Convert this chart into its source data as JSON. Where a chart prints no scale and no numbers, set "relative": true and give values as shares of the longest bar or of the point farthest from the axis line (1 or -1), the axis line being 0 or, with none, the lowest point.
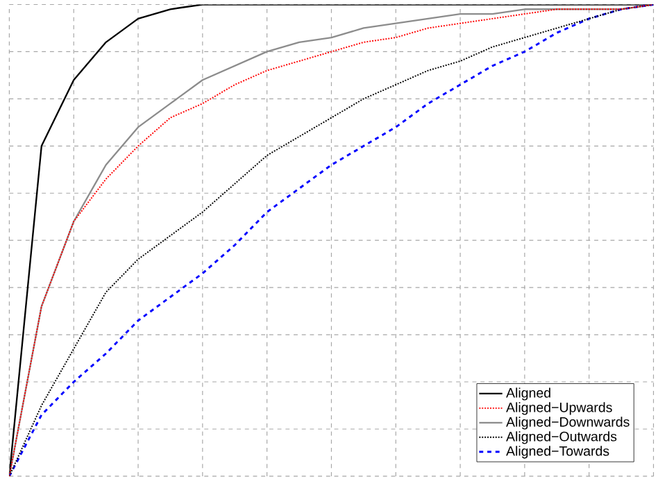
{
  "chart_data": {
    "type": "line",
    "relative": true,
    "grid": true,
    "tick_labels": false,
    "legend": "bottom right",
    "marker": "none",
    "categories": [
      null,
      null,
      null,
      null,
      null,
      null,
      null,
      null,
      null,
      null,
      null,
      null,
      null,
      null,
      null,
      null,
      null,
      null,
      null,
      null,
      null
    ],
    "series": [
      {
        "name": "Aligned",
        "color": "#000000",
        "line_style": "solid",
        "values": [
          0,
          0.7,
          0.84,
          0.92,
          0.97,
          0.99,
          1,
          1,
          1,
          1,
          1,
          1,
          1,
          1,
          1,
          1,
          1,
          1,
          1,
          1,
          1
        ]
      },
      {
        "name": "Aligned−Upwards",
        "color": "#ff0000",
        "line_style": "dotted",
        "values": [
          0,
          0.36,
          0.54,
          0.63,
          0.7,
          0.76,
          0.79,
          0.83,
          0.86,
          0.88,
          0.9,
          0.92,
          0.93,
          0.95,
          0.96,
          0.97,
          0.98,
          0.99,
          0.99,
          0.99,
          1
        ]
      },
      {
        "name": "Aligned−Downwards",
        "color": "#8c8c8c",
        "line_style": "solid",
        "values": [
          0,
          0.36,
          0.54,
          0.66,
          0.74,
          0.79,
          0.84,
          0.87,
          0.9,
          0.92,
          0.93,
          0.95,
          0.96,
          0.97,
          0.98,
          0.98,
          0.99,
          0.99,
          0.99,
          0.99,
          1
        ]
      },
      {
        "name": "Aligned−Outwards",
        "color": "#000000",
        "line_style": "dotted",
        "values": [
          0,
          0.15,
          0.27,
          0.39,
          0.46,
          0.51,
          0.56,
          0.62,
          0.68,
          0.72,
          0.76,
          0.8,
          0.83,
          0.86,
          0.88,
          0.91,
          0.93,
          0.95,
          0.97,
          0.99,
          1
        ]
      },
      {
        "name": "Aligned−Towards",
        "color": "#0000ff",
        "line_style": "dashed",
        "values": [
          0,
          0.13,
          0.2,
          0.26,
          0.33,
          0.38,
          0.43,
          0.49,
          0.56,
          0.61,
          0.66,
          0.7,
          0.74,
          0.79,
          0.83,
          0.87,
          0.9,
          0.94,
          0.97,
          0.99,
          1
        ]
      }
    ]
  }
}
